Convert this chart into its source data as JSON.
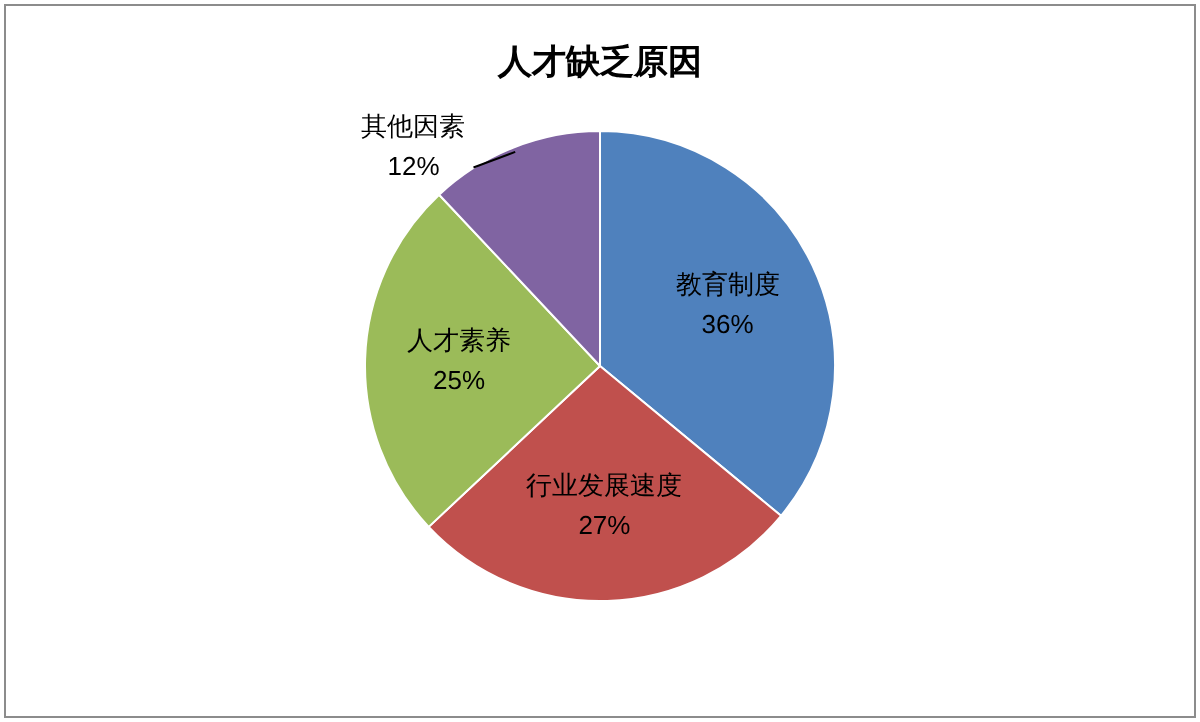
{
  "chart_data": {
    "type": "pie",
    "title": "人才缺乏原因",
    "categories": [
      "教育制度",
      "行业发展速度",
      "人才素养",
      "其他因素"
    ],
    "values": [
      36,
      27,
      25,
      12
    ],
    "value_labels": [
      "36%",
      "27%",
      "25%",
      "12%"
    ],
    "colors": [
      "#4f81bd",
      "#c0504d",
      "#9bbb59",
      "#8064a2"
    ],
    "legend": false
  }
}
